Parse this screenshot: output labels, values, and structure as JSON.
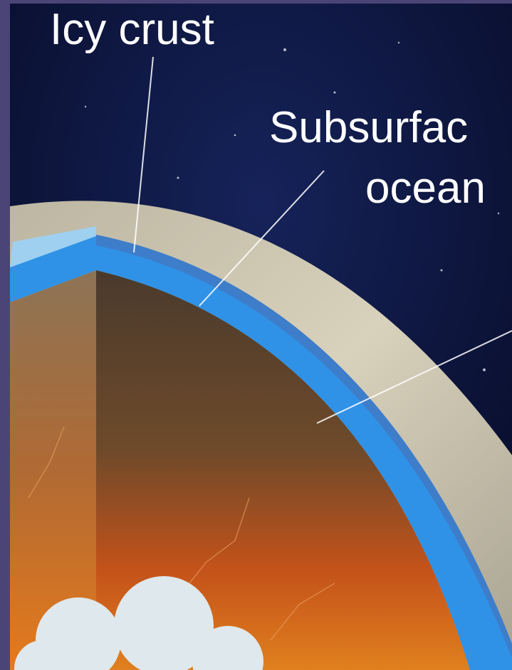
{
  "labels": {
    "icy_crust": "Icy crust",
    "subsurface": [
      "Subsurfac",
      "ocean"
    ]
  }
}
